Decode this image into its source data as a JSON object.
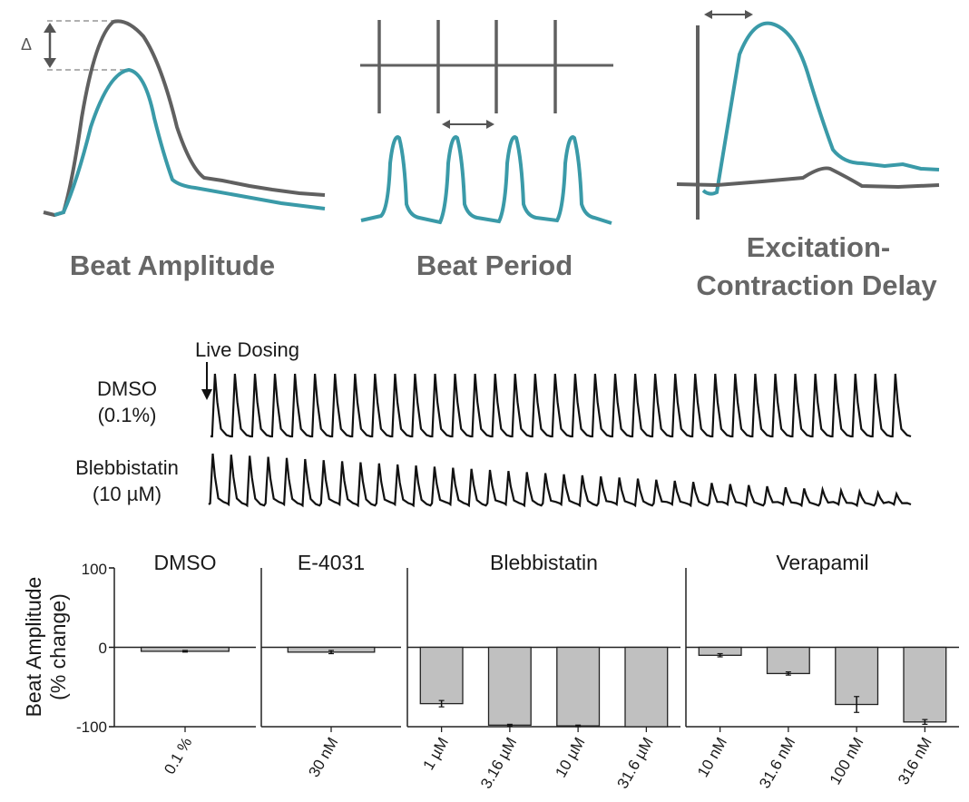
{
  "diagram": {
    "labels": {
      "beat_amplitude": "Beat Amplitude",
      "beat_period": "Beat Period",
      "ec_delay_line1": "Excitation-",
      "ec_delay_line2": "Contraction Delay",
      "delta": "Δ"
    },
    "colors": {
      "teal": "#3a9aa8",
      "gray": "#606060",
      "black": "#111111",
      "bar": "#c0c0c0"
    }
  },
  "traces": {
    "annotation": "Live Dosing",
    "rows": [
      {
        "line1": "DMSO",
        "line2": "(0.1%)"
      },
      {
        "line1": "Blebbistatin",
        "line2": "(10 µM)"
      }
    ]
  },
  "chart_data": {
    "type": "bar",
    "ylabel_line1": "Beat Amplitude",
    "ylabel_line2": "(% change)",
    "ylim": [
      -100,
      100
    ],
    "yticks": [
      "100",
      "0",
      "-100"
    ],
    "panels": [
      {
        "title": "DMSO",
        "categories": [
          "0.1 %"
        ],
        "values": [
          -5
        ],
        "errors": [
          1
        ]
      },
      {
        "title": "E-4031",
        "categories": [
          "30 nM"
        ],
        "values": [
          -6
        ],
        "errors": [
          2
        ]
      },
      {
        "title": "Blebbistatin",
        "categories": [
          "1 µM",
          "3.16 µM",
          "10 µM",
          "31.6 µM"
        ],
        "values": [
          -71,
          -98,
          -99,
          -100
        ],
        "errors": [
          4,
          1,
          1,
          0
        ]
      },
      {
        "title": "Verapamil",
        "categories": [
          "10 nM",
          "31.6 nM",
          "100 nM",
          "316 nM"
        ],
        "values": [
          -10,
          -33,
          -72,
          -94
        ],
        "errors": [
          2,
          2,
          10,
          3
        ]
      }
    ]
  }
}
